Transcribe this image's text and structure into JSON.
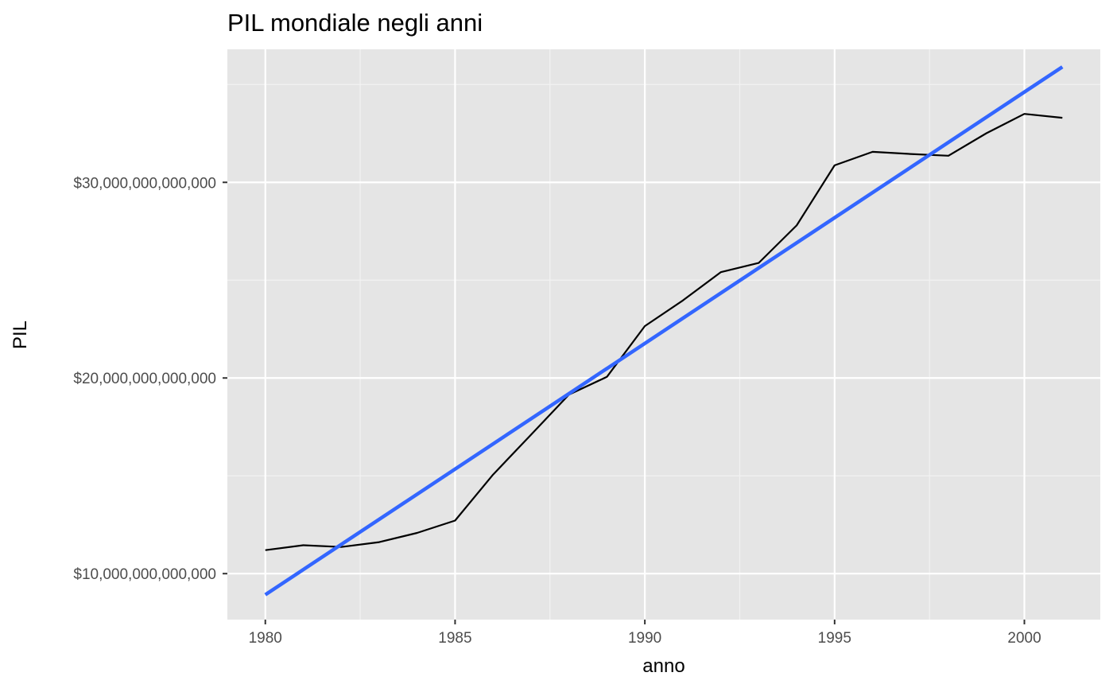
{
  "chart_data": {
    "type": "line",
    "title": "PIL mondiale negli anni",
    "xlabel": "anno",
    "ylabel": "PIL",
    "xlim": [
      1979,
      2002
    ],
    "ylim": [
      7650000000000,
      36800000000000
    ],
    "x_ticks": [
      1980,
      1985,
      1990,
      1995,
      2000
    ],
    "x_tick_labels": [
      "1980",
      "1985",
      "1990",
      "1995",
      "2000"
    ],
    "x_minor_ticks": [
      1982.5,
      1987.5,
      1992.5,
      1997.5
    ],
    "y_ticks": [
      10000000000000,
      20000000000000,
      30000000000000
    ],
    "y_tick_labels": [
      "$10,000,000,000,000",
      "$20,000,000,000,000",
      "$30,000,000,000,000"
    ],
    "y_minor_ticks": [
      15000000000000,
      25000000000000,
      35000000000000
    ],
    "grid": true,
    "panel_background": "#e5e5e5",
    "series": [
      {
        "color": "#000000",
        "x": [
          1980,
          1981,
          1982,
          1983,
          1984,
          1985,
          1986,
          1987,
          1988,
          1989,
          1990,
          1991,
          1992,
          1993,
          1994,
          1995,
          1996,
          1997,
          1998,
          1999,
          2000,
          2001
        ],
        "values": [
          11200000000000,
          11450000000000,
          11360000000000,
          11610000000000,
          12080000000000,
          12710000000000,
          15060000000000,
          17100000000000,
          19150000000000,
          20060000000000,
          22650000000000,
          23960000000000,
          25410000000000,
          25880000000000,
          27800000000000,
          30870000000000,
          31560000000000,
          31450000000000,
          31360000000000,
          32510000000000,
          33500000000000,
          33300000000000
        ]
      },
      {
        "color": "#3366ff",
        "x": [
          1980,
          2001
        ],
        "values": [
          8920000000000,
          35900000000000
        ]
      }
    ]
  }
}
